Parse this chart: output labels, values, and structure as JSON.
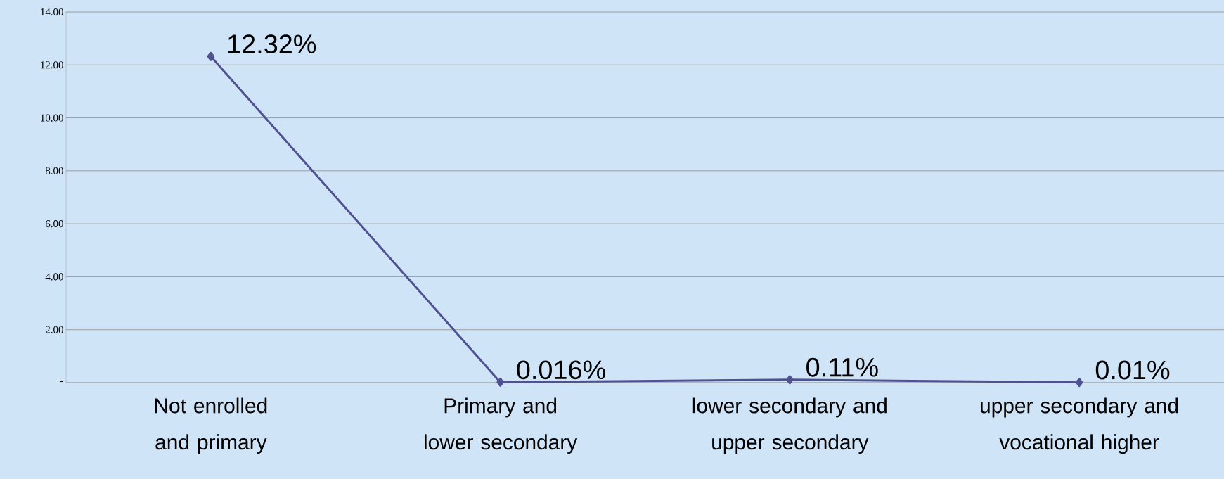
{
  "chart_data": {
    "type": "line",
    "categories": [
      "Not enrolled and primary",
      "Primary and lower secondary",
      "lower secondary and upper secondary",
      "upper secondary and vocational higher"
    ],
    "series": [
      {
        "color": "#4f5190",
        "values": [
          12.32,
          0.016,
          0.11,
          0.01
        ],
        "value_labels": [
          "12.32%",
          "0.016%",
          "0.11%",
          "0.01%"
        ]
      }
    ],
    "ylim": [
      0,
      14
    ],
    "yticks": [
      {
        "value": 0,
        "label": "-"
      },
      {
        "value": 2,
        "label": "2.00"
      },
      {
        "value": 4,
        "label": "4.00"
      },
      {
        "value": 6,
        "label": "6.00"
      },
      {
        "value": 8,
        "label": "8.00"
      },
      {
        "value": 10,
        "label": "10.00"
      },
      {
        "value": 12,
        "label": "12.00"
      },
      {
        "value": 14,
        "label": "14.00"
      }
    ],
    "grid": "y",
    "marker": "diamond",
    "line_style": "solid"
  }
}
